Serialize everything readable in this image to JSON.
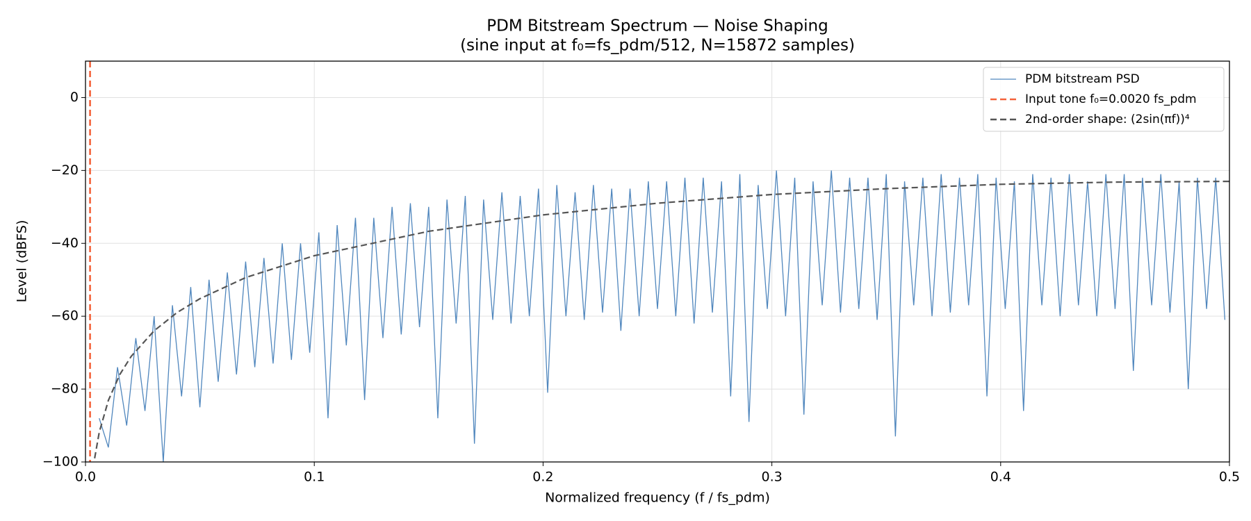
{
  "chart_data": {
    "type": "line",
    "title": [
      "PDM Bitstream Spectrum — Noise Shaping",
      "(sine input at f₀=fs_pdm/512, N=15872 samples)"
    ],
    "xlabel": "Normalized frequency (f / fs_pdm)",
    "ylabel": "Level (dBFS)",
    "xlim": [
      0,
      0.5
    ],
    "ylim": [
      -100,
      10
    ],
    "xticks": [
      {
        "value": 0,
        "label": "0.0"
      },
      0.1,
      0.2,
      0.3,
      0.4,
      0.5
    ],
    "yticks": [
      {
        "value": -100,
        "label": "−100"
      },
      {
        "value": -80,
        "label": "−80"
      },
      {
        "value": -60,
        "label": "−60"
      },
      {
        "value": -40,
        "label": "−40"
      },
      {
        "value": -20,
        "label": "−20"
      },
      0
    ],
    "grid": true,
    "legend": "upper right",
    "series": [
      {
        "name": "PDM bitstream PSD",
        "color": "#4f86bd",
        "style": "solid",
        "x": [
          0.006,
          0.01,
          0.014,
          0.018,
          0.022,
          0.026,
          0.03,
          0.034,
          0.038,
          0.042,
          0.046,
          0.05,
          0.054,
          0.058,
          0.062,
          0.066,
          0.07,
          0.074,
          0.078,
          0.082,
          0.086,
          0.09,
          0.094,
          0.098,
          0.102,
          0.106,
          0.11,
          0.114,
          0.118,
          0.122,
          0.126,
          0.13,
          0.134,
          0.138,
          0.142,
          0.146,
          0.15,
          0.154,
          0.158,
          0.162,
          0.166,
          0.17,
          0.174,
          0.178,
          0.182,
          0.186,
          0.19,
          0.194,
          0.198,
          0.202,
          0.206,
          0.21,
          0.214,
          0.218,
          0.222,
          0.226,
          0.23,
          0.234,
          0.238,
          0.242,
          0.246,
          0.25,
          0.254,
          0.258,
          0.262,
          0.266,
          0.27,
          0.274,
          0.278,
          0.282,
          0.286,
          0.29,
          0.294,
          0.298,
          0.302,
          0.306,
          0.31,
          0.314,
          0.318,
          0.322,
          0.326,
          0.33,
          0.334,
          0.338,
          0.342,
          0.346,
          0.35,
          0.354,
          0.358,
          0.362,
          0.366,
          0.37,
          0.374,
          0.378,
          0.382,
          0.386,
          0.39,
          0.394,
          0.398,
          0.402,
          0.406,
          0.41,
          0.414,
          0.418,
          0.422,
          0.426,
          0.43,
          0.434,
          0.438,
          0.442,
          0.446,
          0.45,
          0.454,
          0.458,
          0.462,
          0.466,
          0.47,
          0.474,
          0.478,
          0.482,
          0.486,
          0.49,
          0.494,
          0.498
        ],
        "values": [
          -88,
          -96,
          -74,
          -90,
          -66,
          -86,
          -60,
          -100,
          -57,
          -82,
          -52,
          -85,
          -50,
          -78,
          -48,
          -76,
          -45,
          -74,
          -44,
          -73,
          -40,
          -72,
          -40,
          -70,
          -37,
          -88,
          -35,
          -68,
          -33,
          -83,
          -33,
          -66,
          -30,
          -65,
          -29,
          -63,
          -30,
          -88,
          -28,
          -62,
          -27,
          -95,
          -28,
          -61,
          -26,
          -62,
          -27,
          -60,
          -25,
          -81,
          -24,
          -60,
          -26,
          -61,
          -24,
          -59,
          -25,
          -64,
          -25,
          -60,
          -23,
          -58,
          -23,
          -60,
          -22,
          -62,
          -22,
          -59,
          -23,
          -82,
          -21,
          -89,
          -24,
          -58,
          -20,
          -60,
          -22,
          -87,
          -23,
          -57,
          -20,
          -59,
          -22,
          -58,
          -22,
          -61,
          -21,
          -93,
          -23,
          -57,
          -22,
          -60,
          -21,
          -59,
          -22,
          -57,
          -21,
          -82,
          -22,
          -58,
          -23,
          -86,
          -21,
          -57,
          -22,
          -60,
          -21,
          -57,
          -23,
          -60,
          -21,
          -58,
          -21,
          -75,
          -22,
          -57,
          -21,
          -59,
          -23,
          -80,
          -22,
          -58,
          -22,
          -61
        ]
      },
      {
        "name": "Input tone  f₀=0.0020 fs_pdm",
        "color": "#f4623a",
        "style": "dashed",
        "x": 0.002
      },
      {
        "name": "2nd-order shape: (2sin(πf))⁴",
        "color": "#555555",
        "style": "dashed",
        "x": [
          0.004,
          0.006,
          0.01,
          0.015,
          0.02,
          0.03,
          0.04,
          0.05,
          0.07,
          0.1,
          0.15,
          0.2,
          0.25,
          0.3,
          0.35,
          0.4,
          0.45,
          0.5
        ],
        "values": [
          -99,
          -91.9,
          -83.1,
          -76,
          -71,
          -64,
          -59,
          -55.2,
          -49.4,
          -43.4,
          -36.7,
          -32.2,
          -29,
          -26.6,
          -25,
          -23.8,
          -23.2,
          -23
        ]
      }
    ]
  }
}
